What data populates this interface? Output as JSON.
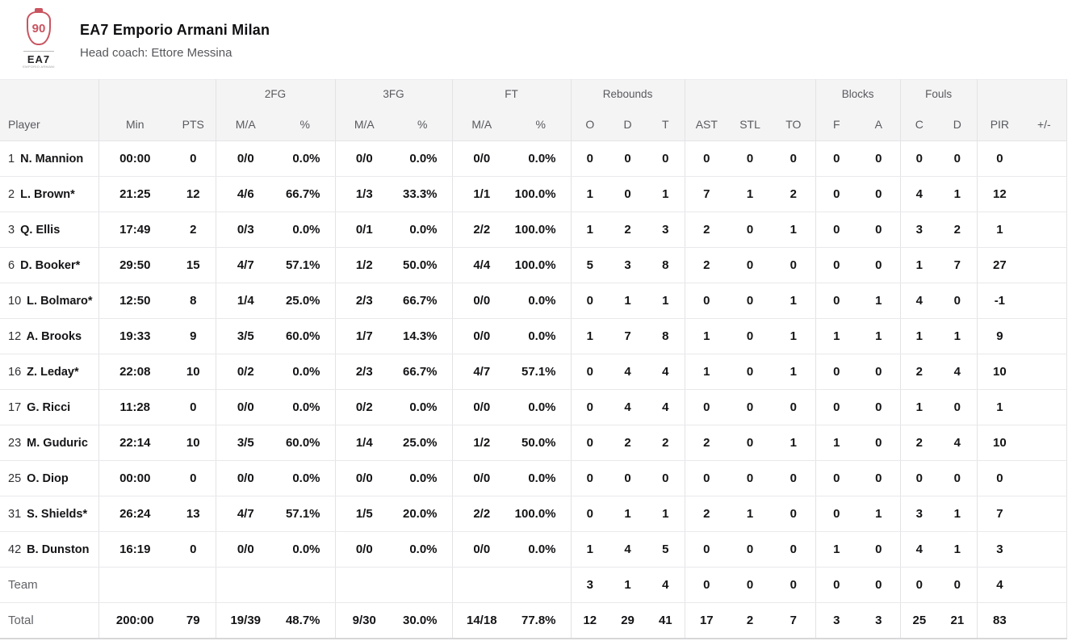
{
  "page": {
    "team_name": "EA7 Emporio Armani Milan",
    "head_coach": "Head coach: Ettore Messina",
    "logo": {
      "emblem_number": "90",
      "wordmark": "EA7",
      "wordmark_sub": "EMPORIO ARMANI",
      "accent_color": "#c95460"
    }
  },
  "table": {
    "groups": [
      {
        "label": "",
        "span": 1
      },
      {
        "label": "",
        "span": 2
      },
      {
        "label": "2FG",
        "span": 2
      },
      {
        "label": "3FG",
        "span": 2
      },
      {
        "label": "FT",
        "span": 2
      },
      {
        "label": "Rebounds",
        "span": 3
      },
      {
        "label": "",
        "span": 3
      },
      {
        "label": "Blocks",
        "span": 2
      },
      {
        "label": "Fouls",
        "span": 2
      },
      {
        "label": "",
        "span": 2
      }
    ],
    "columns": [
      "Player",
      "Min",
      "PTS",
      "M/A",
      "%",
      "M/A",
      "%",
      "M/A",
      "%",
      "O",
      "D",
      "T",
      "AST",
      "STL",
      "TO",
      "F",
      "A",
      "C",
      "D",
      "PIR",
      "+/-"
    ],
    "rows": [
      {
        "number": "1",
        "name": "N. Mannion",
        "cells": [
          "00:00",
          "0",
          "0/0",
          "0.0%",
          "0/0",
          "0.0%",
          "0/0",
          "0.0%",
          "0",
          "0",
          "0",
          "0",
          "0",
          "0",
          "0",
          "0",
          "0",
          "0",
          "0",
          ""
        ]
      },
      {
        "number": "2",
        "name": "L. Brown*",
        "cells": [
          "21:25",
          "12",
          "4/6",
          "66.7%",
          "1/3",
          "33.3%",
          "1/1",
          "100.0%",
          "1",
          "0",
          "1",
          "7",
          "1",
          "2",
          "0",
          "0",
          "4",
          "1",
          "12",
          ""
        ]
      },
      {
        "number": "3",
        "name": "Q. Ellis",
        "cells": [
          "17:49",
          "2",
          "0/3",
          "0.0%",
          "0/1",
          "0.0%",
          "2/2",
          "100.0%",
          "1",
          "2",
          "3",
          "2",
          "0",
          "1",
          "0",
          "0",
          "3",
          "2",
          "1",
          ""
        ]
      },
      {
        "number": "6",
        "name": "D. Booker*",
        "cells": [
          "29:50",
          "15",
          "4/7",
          "57.1%",
          "1/2",
          "50.0%",
          "4/4",
          "100.0%",
          "5",
          "3",
          "8",
          "2",
          "0",
          "0",
          "0",
          "0",
          "1",
          "7",
          "27",
          ""
        ]
      },
      {
        "number": "10",
        "name": "L. Bolmaro*",
        "cells": [
          "12:50",
          "8",
          "1/4",
          "25.0%",
          "2/3",
          "66.7%",
          "0/0",
          "0.0%",
          "0",
          "1",
          "1",
          "0",
          "0",
          "1",
          "0",
          "1",
          "4",
          "0",
          "-1",
          ""
        ]
      },
      {
        "number": "12",
        "name": "A. Brooks",
        "cells": [
          "19:33",
          "9",
          "3/5",
          "60.0%",
          "1/7",
          "14.3%",
          "0/0",
          "0.0%",
          "1",
          "7",
          "8",
          "1",
          "0",
          "1",
          "1",
          "1",
          "1",
          "1",
          "9",
          ""
        ]
      },
      {
        "number": "16",
        "name": "Z. Leday*",
        "cells": [
          "22:08",
          "10",
          "0/2",
          "0.0%",
          "2/3",
          "66.7%",
          "4/7",
          "57.1%",
          "0",
          "4",
          "4",
          "1",
          "0",
          "1",
          "0",
          "0",
          "2",
          "4",
          "10",
          ""
        ]
      },
      {
        "number": "17",
        "name": "G. Ricci",
        "cells": [
          "11:28",
          "0",
          "0/0",
          "0.0%",
          "0/2",
          "0.0%",
          "0/0",
          "0.0%",
          "0",
          "4",
          "4",
          "0",
          "0",
          "0",
          "0",
          "0",
          "1",
          "0",
          "1",
          ""
        ]
      },
      {
        "number": "23",
        "name": "M. Guduric",
        "cells": [
          "22:14",
          "10",
          "3/5",
          "60.0%",
          "1/4",
          "25.0%",
          "1/2",
          "50.0%",
          "0",
          "2",
          "2",
          "2",
          "0",
          "1",
          "1",
          "0",
          "2",
          "4",
          "10",
          ""
        ]
      },
      {
        "number": "25",
        "name": "O. Diop",
        "cells": [
          "00:00",
          "0",
          "0/0",
          "0.0%",
          "0/0",
          "0.0%",
          "0/0",
          "0.0%",
          "0",
          "0",
          "0",
          "0",
          "0",
          "0",
          "0",
          "0",
          "0",
          "0",
          "0",
          ""
        ]
      },
      {
        "number": "31",
        "name": "S. Shields*",
        "cells": [
          "26:24",
          "13",
          "4/7",
          "57.1%",
          "1/5",
          "20.0%",
          "2/2",
          "100.0%",
          "0",
          "1",
          "1",
          "2",
          "1",
          "0",
          "0",
          "1",
          "3",
          "1",
          "7",
          ""
        ]
      },
      {
        "number": "42",
        "name": "B. Dunston",
        "cells": [
          "16:19",
          "0",
          "0/0",
          "0.0%",
          "0/0",
          "0.0%",
          "0/0",
          "0.0%",
          "1",
          "4",
          "5",
          "0",
          "0",
          "0",
          "1",
          "0",
          "4",
          "1",
          "3",
          ""
        ]
      }
    ],
    "summary_rows": [
      {
        "label": "Team",
        "cells": [
          "",
          "",
          "",
          "",
          "",
          "",
          "",
          "",
          "3",
          "1",
          "4",
          "0",
          "0",
          "0",
          "0",
          "0",
          "0",
          "0",
          "4",
          ""
        ]
      },
      {
        "label": "Total",
        "cells": [
          "200:00",
          "79",
          "19/39",
          "48.7%",
          "9/30",
          "30.0%",
          "14/18",
          "77.8%",
          "12",
          "29",
          "41",
          "17",
          "2",
          "7",
          "3",
          "3",
          "25",
          "21",
          "83",
          ""
        ]
      }
    ]
  }
}
